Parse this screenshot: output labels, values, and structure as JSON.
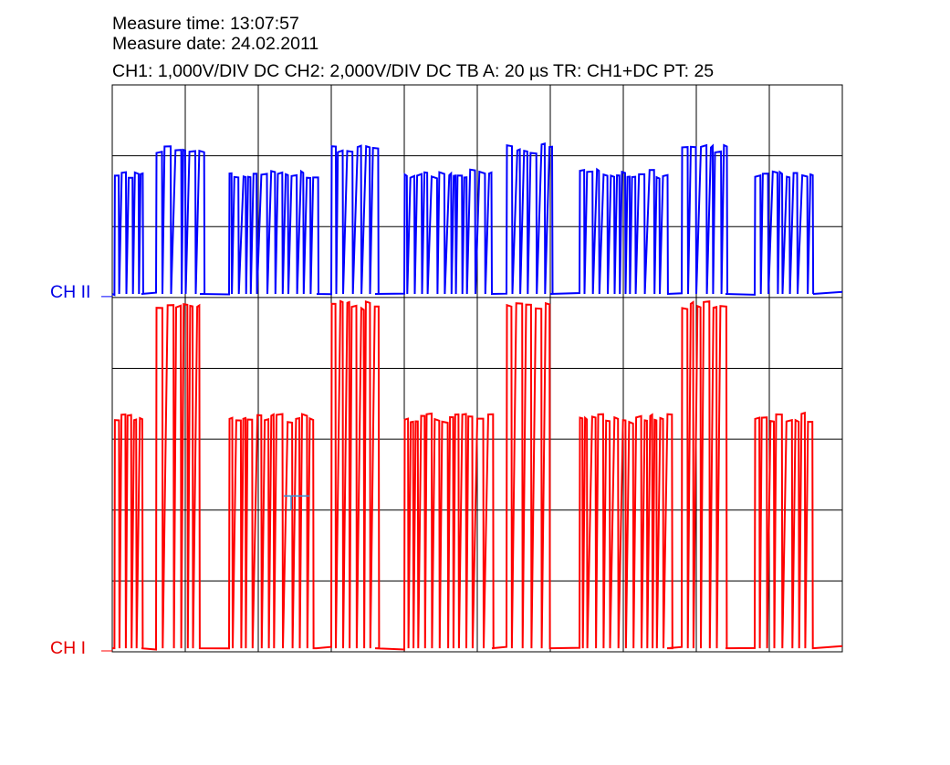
{
  "header": {
    "time_line": "Measure time: 13:07:57",
    "date_line": "Measure date: 24.02.2011",
    "settings_line": "CH1: 1,000V/DIV DC  CH2: 2,000V/DIV DC   TB A: 20 µs  TR: CH1+DC  PT: 25"
  },
  "colors": {
    "ch1": "#ff0000",
    "ch2": "#0000ff",
    "grid": "#000000",
    "cursor": "#3a8fd0"
  },
  "chart_data": {
    "type": "line",
    "grid": true,
    "divisions": {
      "x": 10,
      "y": 8
    },
    "x_units": "div",
    "y_units": "div",
    "xlim": [
      0,
      10
    ],
    "ylim": [
      0,
      8
    ],
    "series": [
      {
        "name": "CH I",
        "label": "CH I",
        "volts_per_div": "1,000V/DIV DC",
        "baseline_div": 0,
        "levels_div": {
          "low": 0.05,
          "mid": 3.3,
          "high": 4.9
        },
        "segments": [
          [
            0.03,
            0.4
          ],
          [
            0.6,
            1.2
          ],
          [
            1.6,
            2.8
          ],
          [
            3.0,
            3.6
          ],
          [
            4.0,
            5.2
          ],
          [
            5.4,
            6.0
          ],
          [
            6.4,
            7.6
          ],
          [
            7.8,
            8.4
          ],
          [
            8.8,
            9.6
          ]
        ],
        "segment_levels": [
          "mid",
          "high",
          "mid",
          "high",
          "mid",
          "high",
          "mid",
          "high",
          "mid"
        ]
      },
      {
        "name": "CH II",
        "label": "CH II",
        "volts_per_div": "2,000V/DIV DC",
        "baseline_div": 5,
        "levels_div": {
          "low": 5.05,
          "mid": 6.75,
          "high": 7.1
        },
        "segments": [
          [
            0.03,
            0.4
          ],
          [
            0.6,
            1.2
          ],
          [
            1.6,
            2.8
          ],
          [
            3.0,
            3.6
          ],
          [
            4.0,
            5.2
          ],
          [
            5.4,
            6.0
          ],
          [
            6.4,
            7.6
          ],
          [
            7.8,
            8.4
          ],
          [
            8.8,
            9.6
          ]
        ],
        "segment_levels": [
          "mid",
          "high",
          "mid",
          "high",
          "mid",
          "high",
          "mid",
          "high",
          "mid"
        ]
      }
    ]
  }
}
